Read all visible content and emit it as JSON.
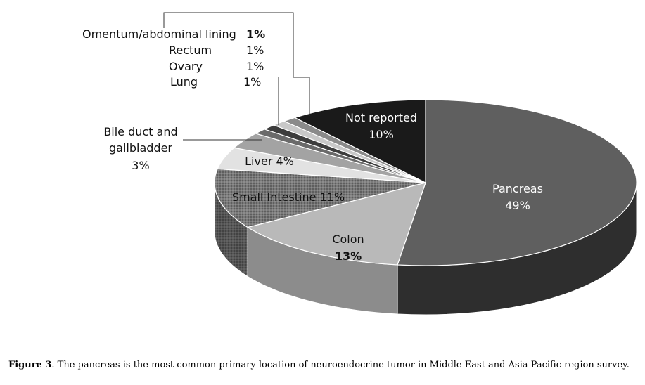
{
  "chart_data": {
    "type": "pie",
    "style": "3d",
    "slices": [
      {
        "label": "Pancreas",
        "value": 49,
        "value_label": "49%",
        "color": "#5f5f5f",
        "side_color": "#2e2e2e",
        "text_color": "#ffffff"
      },
      {
        "label": "Colon",
        "value": 13,
        "value_label": "13%",
        "color": "#b9b9b9",
        "side_color": "#8c8c8c",
        "text_color": "#111111"
      },
      {
        "label": "Small Intestine",
        "value": 11,
        "value_label": "11%",
        "color": "#7a7a7a",
        "side_color": "#555555",
        "text_color": "#111111",
        "pattern": "dotted"
      },
      {
        "label": "Liver",
        "value": 4,
        "value_label": "4%",
        "color": "#e2e2e2",
        "side_color": "#b5b5b5",
        "text_color": "#111111"
      },
      {
        "label": "Bile duct and gallbladder",
        "value": 3,
        "value_label": "3%",
        "color": "#a3a3a3",
        "side_color": "#7b7b7b",
        "text_color": "#111111"
      },
      {
        "label": "Lung",
        "value": 1,
        "value_label": "1%",
        "color": "#6a6a6a",
        "side_color": "#444444",
        "text_color": "#111111"
      },
      {
        "label": "Ovary",
        "value": 1,
        "value_label": "1%",
        "color": "#3d3d3d",
        "side_color": "#262626",
        "text_color": "#111111"
      },
      {
        "label": "Rectum",
        "value": 1,
        "value_label": "1%",
        "color": "#c8c8c8",
        "side_color": "#9a9a9a",
        "text_color": "#111111"
      },
      {
        "label": "Omentum/abdominal lining",
        "value": 1,
        "value_label": "1%",
        "color": "#8a8a8a",
        "side_color": "#606060",
        "text_color": "#111111"
      },
      {
        "label": "Not reported",
        "value": 10,
        "value_label": "10%",
        "color": "#1a1a1a",
        "side_color": "#0d0d0d",
        "text_color": "#ffffff"
      }
    ],
    "bile_label_lines": [
      "Bile duct and",
      "gallbladder",
      "3%"
    ],
    "not_reported_lines": [
      "Not reported",
      "10%"
    ]
  },
  "caption": {
    "prefix": "Figure 3",
    "text": ". The pancreas is the most common primary location of neuroendocrine tumor in Middle East and Asia Pacific region survey."
  }
}
